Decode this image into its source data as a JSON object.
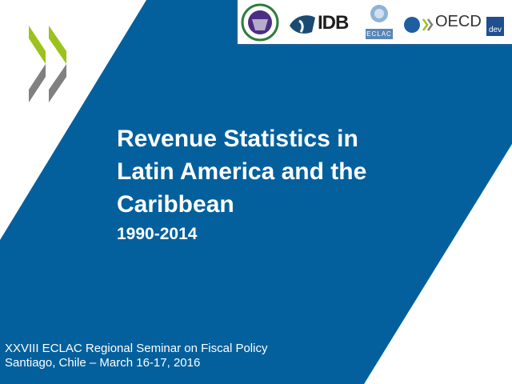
{
  "slide": {
    "title_lines": [
      "Revenue Statistics in",
      "Latin America and the",
      "Caribbean"
    ],
    "years": "1990-2014",
    "footer_lines": [
      "XXVIII ECLAC Regional Seminar on Fiscal Policy",
      "Santiago, Chile – March 16-17, 2016"
    ]
  },
  "logos": {
    "idb": "IDB",
    "eclac": "ECLAC",
    "oecd": "OECD",
    "dev": "dev"
  },
  "colors": {
    "brand_blue": "#03609d",
    "oecd_green": "#9bc31c",
    "oecd_grey": "#808080"
  }
}
